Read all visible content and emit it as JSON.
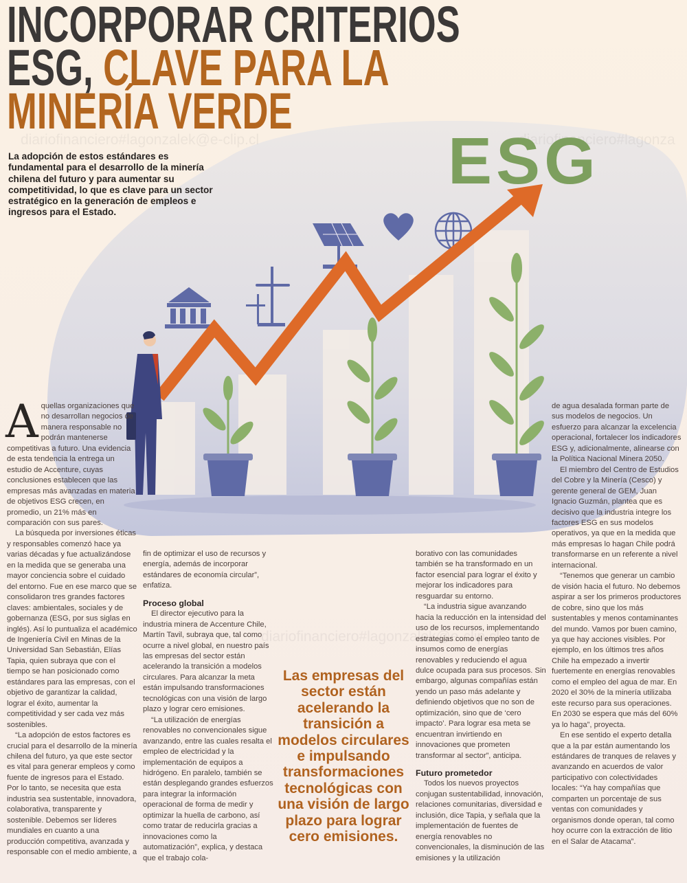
{
  "headline": {
    "line1": "INCORPORAR CRITERIOS",
    "line2_dark": "ESG, ",
    "line2_accent": "CLAVE PARA LA",
    "line3": "MINERÍA VERDE"
  },
  "watermark": {
    "top": "diariofinanciero#lagonzalek@e-clip.cl",
    "right": "diariofinanciero#lagonza",
    "middle": "diariofinanciero#lagonzalek@e-clip.cl"
  },
  "illustration": {
    "logo_text": "ESG",
    "icons": [
      "bank-icon",
      "wind-turbine-icon",
      "solar-panel-icon",
      "heart-icon",
      "globe-icon",
      "growth-arrow",
      "plant-pot",
      "businessman"
    ]
  },
  "intro": "La adopción de estos estándares es fundamental para el desarrollo de la minería chilena del futuro y para aumentar su competitividad, lo que es clave para un sector estratégico en la generación de empleos e ingresos para el Estado.",
  "colors": {
    "accent": "#b3661f",
    "green": "#7d9f5e",
    "illustration_blue": "#5f6aa6",
    "arrow": "#de6a28"
  },
  "columns": {
    "c1": {
      "dropcap": "A",
      "p0": "quellas organizaciones que no desarrollan negocios de manera responsable no podrán mantenerse competitivas a futuro. Una evidencia de esta tendencia la entrega un estudio de Accenture, cuyas conclusiones establecen que las empresas más avanzadas en materia de objetivos ESG crecen, en promedio, un 21% más en comparación con sus pares.",
      "p1": "La búsqueda por inversiones éticas y responsables comenzó hace ya varias décadas y fue actualizándose en la medida que se generaba una mayor conciencia sobre el cuidado del entorno. Fue en ese marco que se consolidaron tres grandes factores claves: ambientales, sociales y de gobernanza (ESG, por sus siglas en inglés). Así lo puntualiza el académico de Ingeniería Civil en Minas de la Universidad San Sebastián, Elías Tapia, quien subraya que con el tiempo se han posicionado como estándares para las empresas, con el objetivo de garantizar la calidad, lograr el éxito, aumentar la competitividad y ser cada vez más sostenibles.",
      "p2": "“La adopción de estos factores es crucial para el desarrollo de la minería chilena del futuro, ya que este sector es vital para generar empleos y como fuente de ingresos para el Estado. Por lo tanto, se necesita que esta industria sea sustentable, innovadora, colaborativa, transparente y sostenible. Debemos ser líderes mundiales en cuanto a una producción competitiva, avanzada y responsable con el medio ambiente, a"
    },
    "c2": {
      "p0": "fin de optimizar el uso de recursos y energía, además de incorporar estándares de economía circular”, enfatiza.",
      "h1": "Proceso global",
      "p1": "El director ejecutivo para la industria minera de Accenture Chile, Martín Tavil, subraya que, tal como ocurre a nivel global, en nuestro país las empresas del sector están acelerando la transición a modelos circulares. Para alcanzar la meta están impulsando transformaciones tecnológicas con una visión de largo plazo y lograr cero emisiones.",
      "p2": "“La utilización de energías renovables no convencionales sigue avanzando, entre las cuales resalta el empleo de electricidad y la implementación de equipos a hidrógeno. En paralelo, también se están desplegando grandes esfuerzos para integrar la información operacional de forma de medir y optimizar la huella de carbono, así como tratar de reducirla gracias a innovaciones como la automatización”, explica, y destaca que el trabajo cola-"
    },
    "c3": {
      "p0": "borativo con las comunidades también se ha transformado en un factor esencial para lograr el éxito y mejorar los indicadores para resguardar su entorno.",
      "p1": "“La industria sigue avanzando hacia la reducción en la intensidad del uso de los recursos, implementando estrategias como el empleo tanto de insumos como de energías renovables y reduciendo el agua dulce ocupada para sus procesos. Sin embargo, algunas compañías están yendo un paso más adelante y definiendo objetivos que no son de optimización, sino que de ‘cero impacto’. Para lograr esa meta se encuentran invirtiendo en innovaciones que prometen transformar al sector”, anticipa.",
      "h1": "Futuro prometedor",
      "p2": "Todos los nuevos proyectos conjugan sustentabilidad, innovación, relaciones comunitarias, diversidad e inclusión, dice Tapia, y señala que la implementación de fuentes de energía renovables no convencionales, la disminución de las emisiones y la utilización"
    },
    "c4": {
      "p0": "de agua desalada forman parte de sus modelos de negocios. Un esfuerzo para alcanzar la excelencia operacional, fortalecer los indicadores ESG y, adicionalmente, alinearse con la Política Nacional Minera 2050.",
      "p1": "El miembro del Centro de Estudios del Cobre y la Minería (Cesco) y gerente general de GEM, Juan Ignacio Guzmán, plantea que es decisivo que la industria integre los factores ESG en sus modelos operativos, ya que en la medida que más empresas lo hagan Chile podrá transformarse en un referente a nivel internacional.",
      "p2": "“Tenemos que generar un cambio de visión hacia el futuro. No debemos aspirar a ser los primeros productores de cobre, sino que los más sustentables y menos contaminantes del mundo. Vamos por buen camino, ya que hay acciones visibles. Por ejemplo, en los últimos tres años Chile ha empezado a invertir fuertemente en energías renovables como el empleo del agua de mar. En 2020 el 30% de la minería utilizaba este recurso para sus operaciones. En 2030 se espera que más del 60% ya lo haga”, proyecta.",
      "p3": "En ese sentido el experto detalla que a la par están aumentando los estándares de tranques de relaves y avanzando en acuerdos de valor participativo con colectividades locales: “Ya hay compañías que comparten un porcentaje de sus ventas con comunidades y organismos donde operan, tal como hoy ocurre con la extracción de litio en el Salar de Atacama”."
    }
  },
  "pull_quote": "Las empresas del sector están acelerando la transición a modelos circulares e impulsando transformaciones tecnológicas con una visión de largo plazo para lograr cero emisiones."
}
